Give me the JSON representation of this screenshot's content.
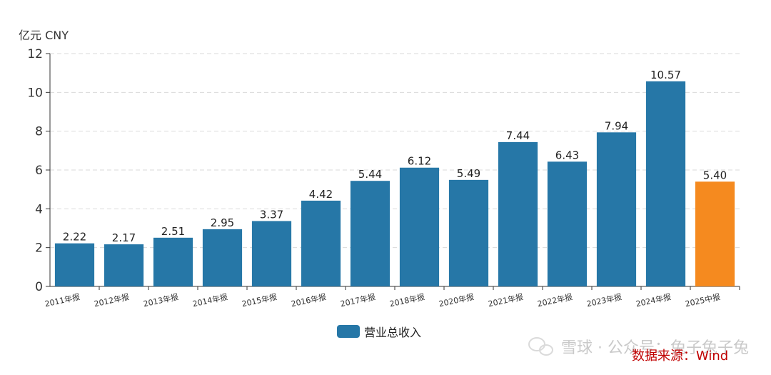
{
  "unit_label": "亿元 CNY",
  "legend": {
    "label": "营业总收入"
  },
  "source_text": "数据来源：Wind",
  "watermark_text": "雪球 公众号：兔子兔子兔",
  "colors": {
    "bar": "#2677a7",
    "highlight": "#f58a1f",
    "grid": "#d9d9d9",
    "axis": "#333333",
    "source": "#c00000"
  },
  "chart_data": {
    "type": "bar",
    "title": "",
    "xlabel": "",
    "ylabel": "亿元 CNY",
    "ylim": [
      0,
      12
    ],
    "yticks": [
      0,
      2,
      4,
      6,
      8,
      10,
      12
    ],
    "grid": true,
    "legend_position": "bottom-center",
    "categories": [
      "2011年报",
      "2012年报",
      "2013年报",
      "2014年报",
      "2015年报",
      "2016年报",
      "2017年报",
      "2018年报",
      "2020年报",
      "2021年报",
      "2022年报",
      "2023年报",
      "2024年报",
      "2025中报"
    ],
    "series": [
      {
        "name": "营业总收入",
        "values": [
          2.22,
          2.17,
          2.51,
          2.95,
          3.37,
          4.42,
          5.44,
          6.12,
          5.49,
          7.44,
          6.43,
          7.94,
          10.57,
          5.4
        ],
        "labels": [
          "2.22",
          "2.17",
          "2.51",
          "2.95",
          "3.37",
          "4.42",
          "5.44",
          "6.12",
          "5.49",
          "7.44",
          "6.43",
          "7.94",
          "10.57",
          "5.40"
        ]
      }
    ],
    "highlight_index": 13
  }
}
